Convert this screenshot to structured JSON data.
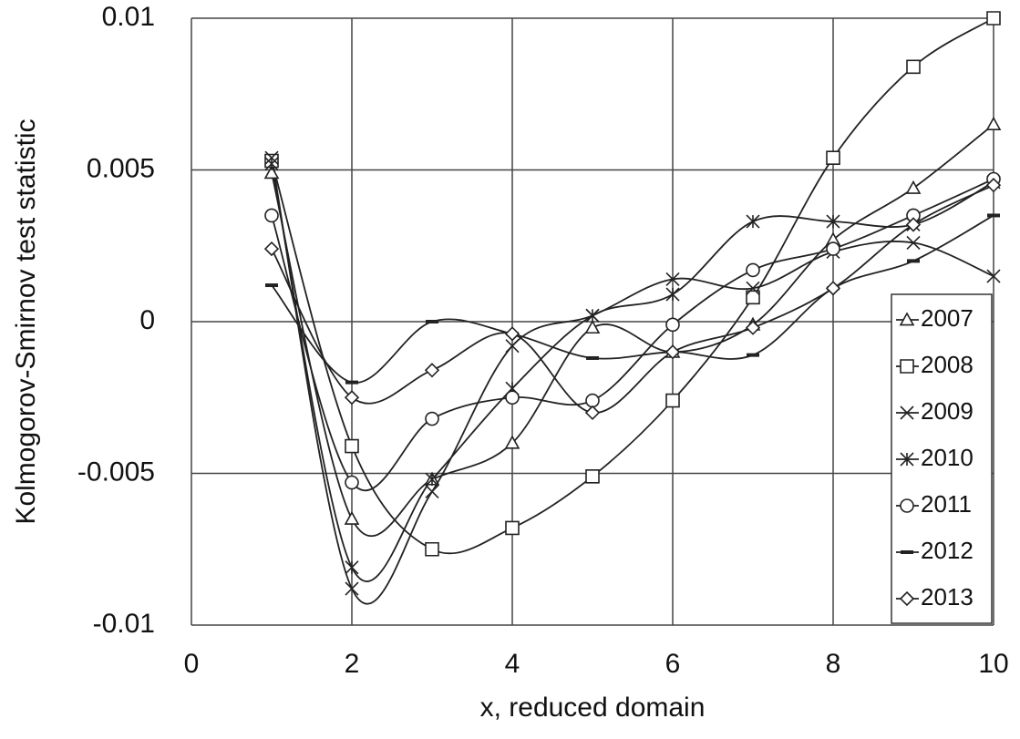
{
  "chart_data": {
    "type": "line",
    "x_label": "x, reduced domain",
    "y_label": "Kolmogorov-Smirnov test statistic",
    "x": [
      1,
      2,
      3,
      4,
      5,
      6,
      7,
      8,
      9,
      10
    ],
    "xlim": [
      0,
      10
    ],
    "xticks": [
      0,
      2,
      4,
      6,
      8,
      10
    ],
    "ylim": [
      -0.01,
      0.01
    ],
    "yticks": [
      -0.01,
      -0.005,
      0,
      0.005,
      0.01
    ],
    "grid": true,
    "smooth": true,
    "legend": "right",
    "color": "#222222",
    "series": [
      {
        "name": "2007",
        "marker": "triangle",
        "values": [
          0.0049,
          -0.0065,
          -0.0052,
          -0.004,
          -0.0002,
          -0.001,
          -0.0001,
          0.0027,
          0.0044,
          0.0065
        ]
      },
      {
        "name": "2008",
        "marker": "square",
        "values": [
          0.0053,
          -0.0041,
          -0.0075,
          -0.0068,
          -0.0051,
          -0.0026,
          0.0008,
          0.0054,
          0.0084,
          0.01
        ]
      },
      {
        "name": "2009",
        "marker": "cross",
        "values": [
          0.0054,
          -0.0088,
          -0.0056,
          -0.0008,
          0.0002,
          0.0014,
          0.0011,
          0.0023,
          0.0026,
          0.0015
        ]
      },
      {
        "name": "2010",
        "marker": "asterisk",
        "values": [
          0.0052,
          -0.0081,
          -0.0052,
          -0.0022,
          0.0002,
          0.0009,
          0.0033,
          0.0033,
          0.0032,
          0.0046
        ]
      },
      {
        "name": "2011",
        "marker": "circle",
        "values": [
          0.0035,
          -0.0053,
          -0.0032,
          -0.0025,
          -0.0026,
          -0.0001,
          0.0017,
          0.0024,
          0.0035,
          0.0047
        ]
      },
      {
        "name": "2012",
        "marker": "dash",
        "values": [
          0.0012,
          -0.002,
          0.0,
          -0.0004,
          -0.0012,
          -0.001,
          -0.0011,
          0.0011,
          0.002,
          0.0035
        ]
      },
      {
        "name": "2013",
        "marker": "diamond",
        "values": [
          0.0024,
          -0.0025,
          -0.0016,
          -0.0004,
          -0.003,
          -0.001,
          -0.0002,
          0.0011,
          0.0032,
          0.0045
        ]
      }
    ]
  }
}
